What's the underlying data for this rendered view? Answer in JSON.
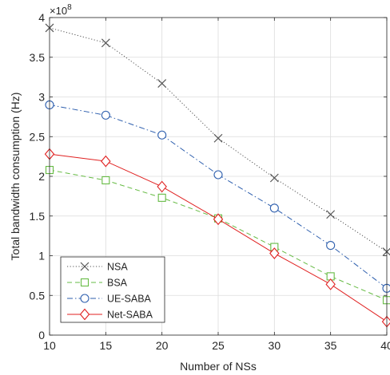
{
  "chart_data": {
    "type": "line",
    "title": "",
    "xlabel": "Number of NSs",
    "ylabel": "Total bandwidth consumption (Hz)",
    "exponent_label": "×10",
    "exponent_power": "8",
    "x": [
      10,
      15,
      20,
      25,
      30,
      35,
      40
    ],
    "xlim": [
      10,
      40
    ],
    "ylim": [
      0,
      4
    ],
    "x_ticks": [
      10,
      15,
      20,
      25,
      30,
      35,
      40
    ],
    "y_ticks": [
      0,
      0.5,
      1,
      1.5,
      2,
      2.5,
      3,
      3.5,
      4
    ],
    "grid": true,
    "legend_position": "bottom-left",
    "series": [
      {
        "name": "NSA",
        "values": [
          3.87,
          3.68,
          3.17,
          2.48,
          1.98,
          1.52,
          1.05
        ],
        "color": "#555555",
        "marker": "x",
        "dash": "dotted"
      },
      {
        "name": "BSA",
        "values": [
          2.08,
          1.95,
          1.73,
          1.47,
          1.11,
          0.74,
          0.44
        ],
        "color": "#66bb44",
        "marker": "square",
        "dash": "dashed"
      },
      {
        "name": "UE-SABA",
        "values": [
          2.9,
          2.77,
          2.52,
          2.02,
          1.6,
          1.13,
          0.59
        ],
        "color": "#2e5fae",
        "marker": "circle",
        "dash": "dashdot"
      },
      {
        "name": "Net-SABA",
        "values": [
          2.28,
          2.19,
          1.87,
          1.46,
          1.03,
          0.64,
          0.17
        ],
        "color": "#e02020",
        "marker": "diamond",
        "dash": "solid"
      }
    ]
  }
}
